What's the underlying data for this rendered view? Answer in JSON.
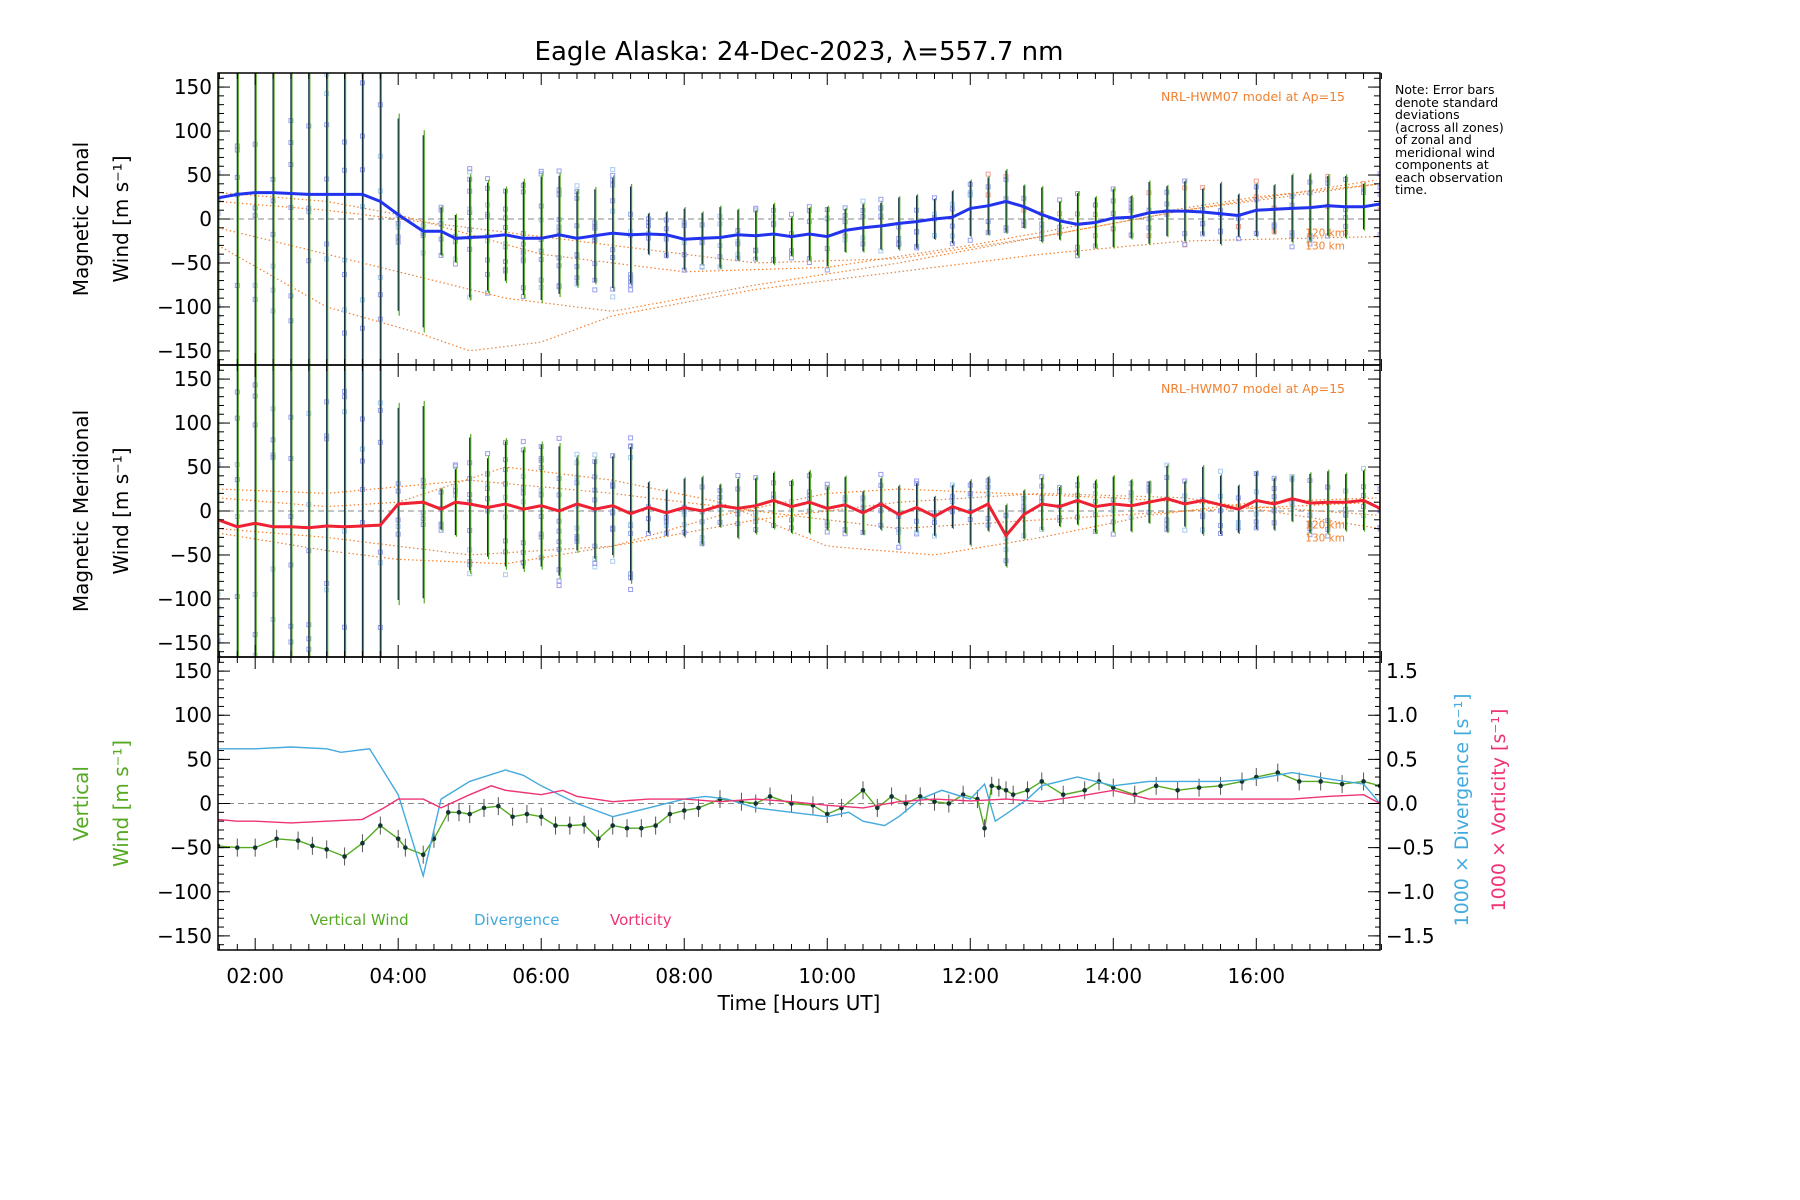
{
  "chart_data": [
    {
      "type": "line",
      "panel": "zonal",
      "title": "Eagle Alaska: 24-Dec-2023, λ=557.7 nm",
      "ylabel_line1": "Magnetic Zonal",
      "ylabel_line2": "Wind [m s⁻¹]",
      "xlim_hours": [
        1.48,
        17.73
      ],
      "ylim": [
        -166,
        166
      ],
      "yticks": [
        -150,
        -100,
        -50,
        0,
        50,
        100,
        150
      ],
      "model_label": "NRL-HWM07 model at Ap=15",
      "model_altitudes": [
        "120 km",
        "130 km"
      ],
      "mean_color": "#2233ee",
      "mean": {
        "x": [
          1.48,
          1.75,
          2.0,
          2.25,
          2.5,
          2.75,
          3.0,
          3.25,
          3.5,
          3.75,
          4.0,
          4.35,
          4.6,
          4.8,
          5.0,
          5.25,
          5.5,
          5.75,
          6.0,
          6.25,
          6.5,
          6.75,
          7.0,
          7.25,
          7.5,
          7.75,
          8.0,
          8.25,
          8.5,
          8.75,
          9.0,
          9.25,
          9.5,
          9.75,
          10.0,
          10.25,
          10.5,
          10.75,
          11.0,
          11.25,
          11.5,
          11.75,
          12.0,
          12.25,
          12.5,
          12.75,
          13.0,
          13.25,
          13.5,
          13.75,
          14.0,
          14.25,
          14.5,
          14.75,
          15.0,
          15.25,
          15.5,
          15.75,
          16.0,
          16.25,
          16.5,
          16.75,
          17.0,
          17.25,
          17.5,
          17.73
        ],
        "y": [
          24,
          28,
          30,
          30,
          29,
          28,
          28,
          28,
          28,
          20,
          5,
          -14,
          -14,
          -22,
          -21,
          -20,
          -18,
          -22,
          -22,
          -18,
          -22,
          -19,
          -16,
          -18,
          -17,
          -18,
          -23,
          -22,
          -21,
          -18,
          -19,
          -17,
          -20,
          -17,
          -20,
          -13,
          -10,
          -8,
          -5,
          -3,
          0,
          2,
          12,
          15,
          20,
          14,
          5,
          -2,
          -6,
          -4,
          1,
          2,
          7,
          9,
          9,
          8,
          6,
          4,
          10,
          11,
          12,
          13,
          15,
          14,
          14,
          17
        ]
      },
      "model_curves": [
        {
          "name": "model-a",
          "x": [
            1.48,
            3,
            4,
            5.5,
            7,
            9,
            11,
            13,
            15,
            17.73
          ],
          "y": [
            -10,
            -40,
            -60,
            -90,
            -105,
            -75,
            -50,
            -20,
            10,
            40
          ]
        },
        {
          "name": "model-b",
          "x": [
            1.48,
            3,
            4.3,
            5,
            6,
            7,
            9,
            11,
            13,
            15,
            17.73
          ],
          "y": [
            -30,
            -100,
            -130,
            -150,
            -140,
            -110,
            -80,
            -60,
            -40,
            -25,
            -20
          ]
        },
        {
          "name": "model-c",
          "x": [
            1.48,
            3,
            4,
            6,
            8,
            10,
            12,
            14,
            16,
            17.73
          ],
          "y": [
            30,
            20,
            5,
            -40,
            -60,
            -55,
            -30,
            0,
            25,
            40
          ]
        },
        {
          "name": "model-d",
          "x": [
            1.48,
            3,
            5,
            7,
            9,
            11,
            13,
            15,
            17.73
          ],
          "y": [
            20,
            10,
            -10,
            -30,
            -50,
            -45,
            -20,
            10,
            45
          ]
        }
      ]
    },
    {
      "type": "line",
      "panel": "meridional",
      "ylabel_line1": "Magnetic Meridional",
      "ylabel_line2": "Wind [m s⁻¹]",
      "xlim_hours": [
        1.48,
        17.73
      ],
      "ylim": [
        -166,
        166
      ],
      "yticks": [
        -150,
        -100,
        -50,
        0,
        50,
        100,
        150
      ],
      "model_label": "NRL-HWM07 model at Ap=15",
      "model_altitudes": [
        "120 km",
        "130 km"
      ],
      "mean_color": "#ee2233",
      "mean": {
        "x": [
          1.48,
          1.75,
          2.0,
          2.25,
          2.5,
          2.75,
          3.0,
          3.25,
          3.5,
          3.75,
          4.0,
          4.35,
          4.6,
          4.8,
          5.0,
          5.25,
          5.5,
          5.75,
          6.0,
          6.25,
          6.5,
          6.75,
          7.0,
          7.25,
          7.5,
          7.75,
          8.0,
          8.25,
          8.5,
          8.75,
          9.0,
          9.25,
          9.5,
          9.75,
          10.0,
          10.25,
          10.5,
          10.75,
          11.0,
          11.25,
          11.5,
          11.75,
          12.0,
          12.25,
          12.5,
          12.75,
          13.0,
          13.25,
          13.5,
          13.75,
          14.0,
          14.25,
          14.5,
          14.75,
          15.0,
          15.25,
          15.5,
          15.75,
          16.0,
          16.25,
          16.5,
          16.75,
          17.0,
          17.25,
          17.5,
          17.73
        ],
        "y": [
          -10,
          -18,
          -14,
          -18,
          -18,
          -19,
          -17,
          -18,
          -17,
          -16,
          8,
          10,
          2,
          10,
          8,
          4,
          8,
          2,
          6,
          0,
          8,
          2,
          6,
          -3,
          4,
          -2,
          4,
          0,
          6,
          3,
          6,
          12,
          5,
          10,
          3,
          7,
          -2,
          8,
          -4,
          4,
          -6,
          5,
          -2,
          8,
          -28,
          -4,
          8,
          5,
          12,
          5,
          8,
          6,
          10,
          14,
          8,
          12,
          7,
          2,
          12,
          8,
          14,
          9,
          10,
          10,
          12,
          3
        ]
      },
      "model_curves": [
        {
          "name": "model-a",
          "x": [
            1.48,
            3,
            4,
            5.5,
            7,
            8.5,
            10,
            11,
            12.5,
            14,
            16,
            17.73
          ],
          "y": [
            -25,
            -45,
            -55,
            -60,
            -40,
            -5,
            20,
            25,
            20,
            15,
            5,
            -5
          ]
        },
        {
          "name": "model-b",
          "x": [
            1.48,
            3,
            4,
            5.5,
            7,
            8.5,
            10,
            11.5,
            13,
            14.5,
            16,
            17.73
          ],
          "y": [
            15,
            5,
            10,
            50,
            35,
            10,
            -40,
            -50,
            -30,
            -5,
            10,
            15
          ]
        },
        {
          "name": "model-c",
          "x": [
            1.48,
            3,
            5,
            7,
            9,
            11,
            13,
            15,
            17.73
          ],
          "y": [
            -20,
            -30,
            -50,
            -40,
            -10,
            10,
            20,
            15,
            -20
          ]
        },
        {
          "name": "model-d",
          "x": [
            1.48,
            3,
            5,
            7,
            9,
            11,
            13,
            15,
            17.73
          ],
          "y": [
            25,
            20,
            35,
            20,
            0,
            -20,
            -10,
            0,
            10
          ]
        }
      ]
    },
    {
      "type": "line",
      "panel": "vertical",
      "ylabel_line1": "Vertical",
      "ylabel_line2": "Wind [m s⁻¹]",
      "y2label_divergence": "1000 × Divergence [s⁻¹]",
      "y2label_vorticity": "1000 × Vorticity [s⁻¹]",
      "xlabel": "Time [Hours UT]",
      "xlim_hours": [
        1.48,
        17.73
      ],
      "xticks": [
        "02:00",
        "04:00",
        "06:00",
        "08:00",
        "10:00",
        "12:00",
        "14:00",
        "16:00"
      ],
      "ylim": [
        -166,
        166
      ],
      "yticks": [
        -150,
        -100,
        -50,
        0,
        50,
        100,
        150
      ],
      "y2lim": [
        -1.66,
        1.66
      ],
      "y2ticks": [
        -1.5,
        -1.0,
        -0.5,
        0.0,
        0.5,
        1.0,
        1.5
      ],
      "legend": [
        {
          "label": "Vertical Wind",
          "color": "#55aa22"
        },
        {
          "label": "Divergence",
          "color": "#44aadd"
        },
        {
          "label": "Vorticity",
          "color": "#ee3377"
        }
      ],
      "series": [
        {
          "name": "Vertical Wind",
          "color": "#55aa22",
          "axis": "left",
          "x": [
            1.48,
            1.75,
            2.0,
            2.3,
            2.6,
            2.8,
            3.0,
            3.25,
            3.5,
            3.75,
            4.0,
            4.1,
            4.35,
            4.5,
            4.7,
            4.85,
            5.0,
            5.2,
            5.4,
            5.6,
            5.8,
            6.0,
            6.2,
            6.4,
            6.6,
            6.8,
            7.0,
            7.2,
            7.4,
            7.6,
            7.8,
            8.0,
            8.2,
            8.5,
            8.8,
            9.0,
            9.2,
            9.5,
            9.8,
            10.0,
            10.2,
            10.5,
            10.7,
            10.9,
            11.1,
            11.3,
            11.5,
            11.7,
            11.9,
            12.1,
            12.2,
            12.3,
            12.4,
            12.5,
            12.6,
            12.8,
            13.0,
            13.3,
            13.6,
            13.8,
            14.0,
            14.3,
            14.6,
            14.9,
            15.2,
            15.5,
            15.8,
            16.0,
            16.3,
            16.6,
            16.9,
            17.2,
            17.5,
            17.73
          ],
          "y": [
            -48,
            -50,
            -50,
            -40,
            -42,
            -48,
            -52,
            -60,
            -45,
            -25,
            -40,
            -50,
            -58,
            -40,
            -10,
            -10,
            -12,
            -5,
            -3,
            -15,
            -12,
            -15,
            -25,
            -25,
            -24,
            -40,
            -25,
            -28,
            -28,
            -25,
            -12,
            -8,
            -5,
            5,
            2,
            0,
            8,
            0,
            -2,
            -12,
            -5,
            15,
            -5,
            8,
            0,
            8,
            2,
            0,
            10,
            5,
            -28,
            20,
            18,
            15,
            10,
            15,
            25,
            10,
            15,
            25,
            18,
            10,
            20,
            15,
            18,
            20,
            25,
            30,
            35,
            25,
            25,
            22,
            25,
            20
          ]
        },
        {
          "name": "1000 x Divergence",
          "color": "#44aadd",
          "axis": "right",
          "x": [
            1.48,
            2.0,
            2.5,
            3.0,
            3.2,
            3.6,
            4.0,
            4.35,
            4.6,
            5.0,
            5.5,
            5.75,
            6.0,
            6.5,
            7.0,
            7.5,
            8.0,
            8.3,
            8.6,
            9.0,
            9.5,
            10.0,
            10.3,
            10.5,
            10.8,
            11.0,
            11.3,
            11.6,
            12.0,
            12.2,
            12.35,
            12.5,
            12.8,
            13.0,
            13.5,
            14.0,
            14.5,
            15.0,
            15.5,
            16.0,
            16.5,
            17.0,
            17.5,
            17.73
          ],
          "y": [
            0.62,
            0.62,
            0.64,
            0.62,
            0.58,
            0.62,
            0.1,
            -0.82,
            0.05,
            0.25,
            0.38,
            0.32,
            0.2,
            0.0,
            -0.15,
            -0.05,
            0.05,
            0.08,
            0.05,
            -0.05,
            -0.1,
            -0.15,
            -0.1,
            -0.2,
            -0.25,
            -0.15,
            0.05,
            0.15,
            0.05,
            0.22,
            -0.2,
            -0.12,
            0.05,
            0.2,
            0.3,
            0.2,
            0.25,
            0.25,
            0.25,
            0.28,
            0.35,
            0.28,
            0.22,
            0.0
          ]
        },
        {
          "name": "1000 x Vorticity",
          "color": "#ee3377",
          "axis": "right",
          "x": [
            1.48,
            1.75,
            2.0,
            2.5,
            3.0,
            3.5,
            3.8,
            4.0,
            4.35,
            4.6,
            5.0,
            5.3,
            5.5,
            6.0,
            6.3,
            6.5,
            7.0,
            7.5,
            8.0,
            8.5,
            9.0,
            9.5,
            10.0,
            10.5,
            11.0,
            11.5,
            12.0,
            12.5,
            13.0,
            13.5,
            14.0,
            14.5,
            15.0,
            15.5,
            16.0,
            16.5,
            17.0,
            17.5,
            17.73
          ],
          "y": [
            -0.18,
            -0.2,
            -0.2,
            -0.22,
            -0.2,
            -0.18,
            -0.05,
            0.05,
            0.05,
            -0.05,
            0.1,
            0.2,
            0.15,
            0.1,
            0.15,
            0.08,
            0.02,
            0.05,
            0.05,
            0.02,
            0.05,
            0.02,
            -0.02,
            -0.05,
            0.02,
            0.05,
            0.03,
            0.05,
            0.02,
            0.08,
            0.15,
            0.05,
            0.05,
            0.05,
            0.05,
            0.05,
            0.08,
            0.1,
            0.0
          ]
        }
      ]
    }
  ],
  "note": {
    "lines": [
      "Note: Error bars",
      "denote standard",
      "deviations",
      "(across all zones)",
      "of zonal and",
      "meridional wind",
      "components at",
      "each observation",
      "time."
    ]
  }
}
